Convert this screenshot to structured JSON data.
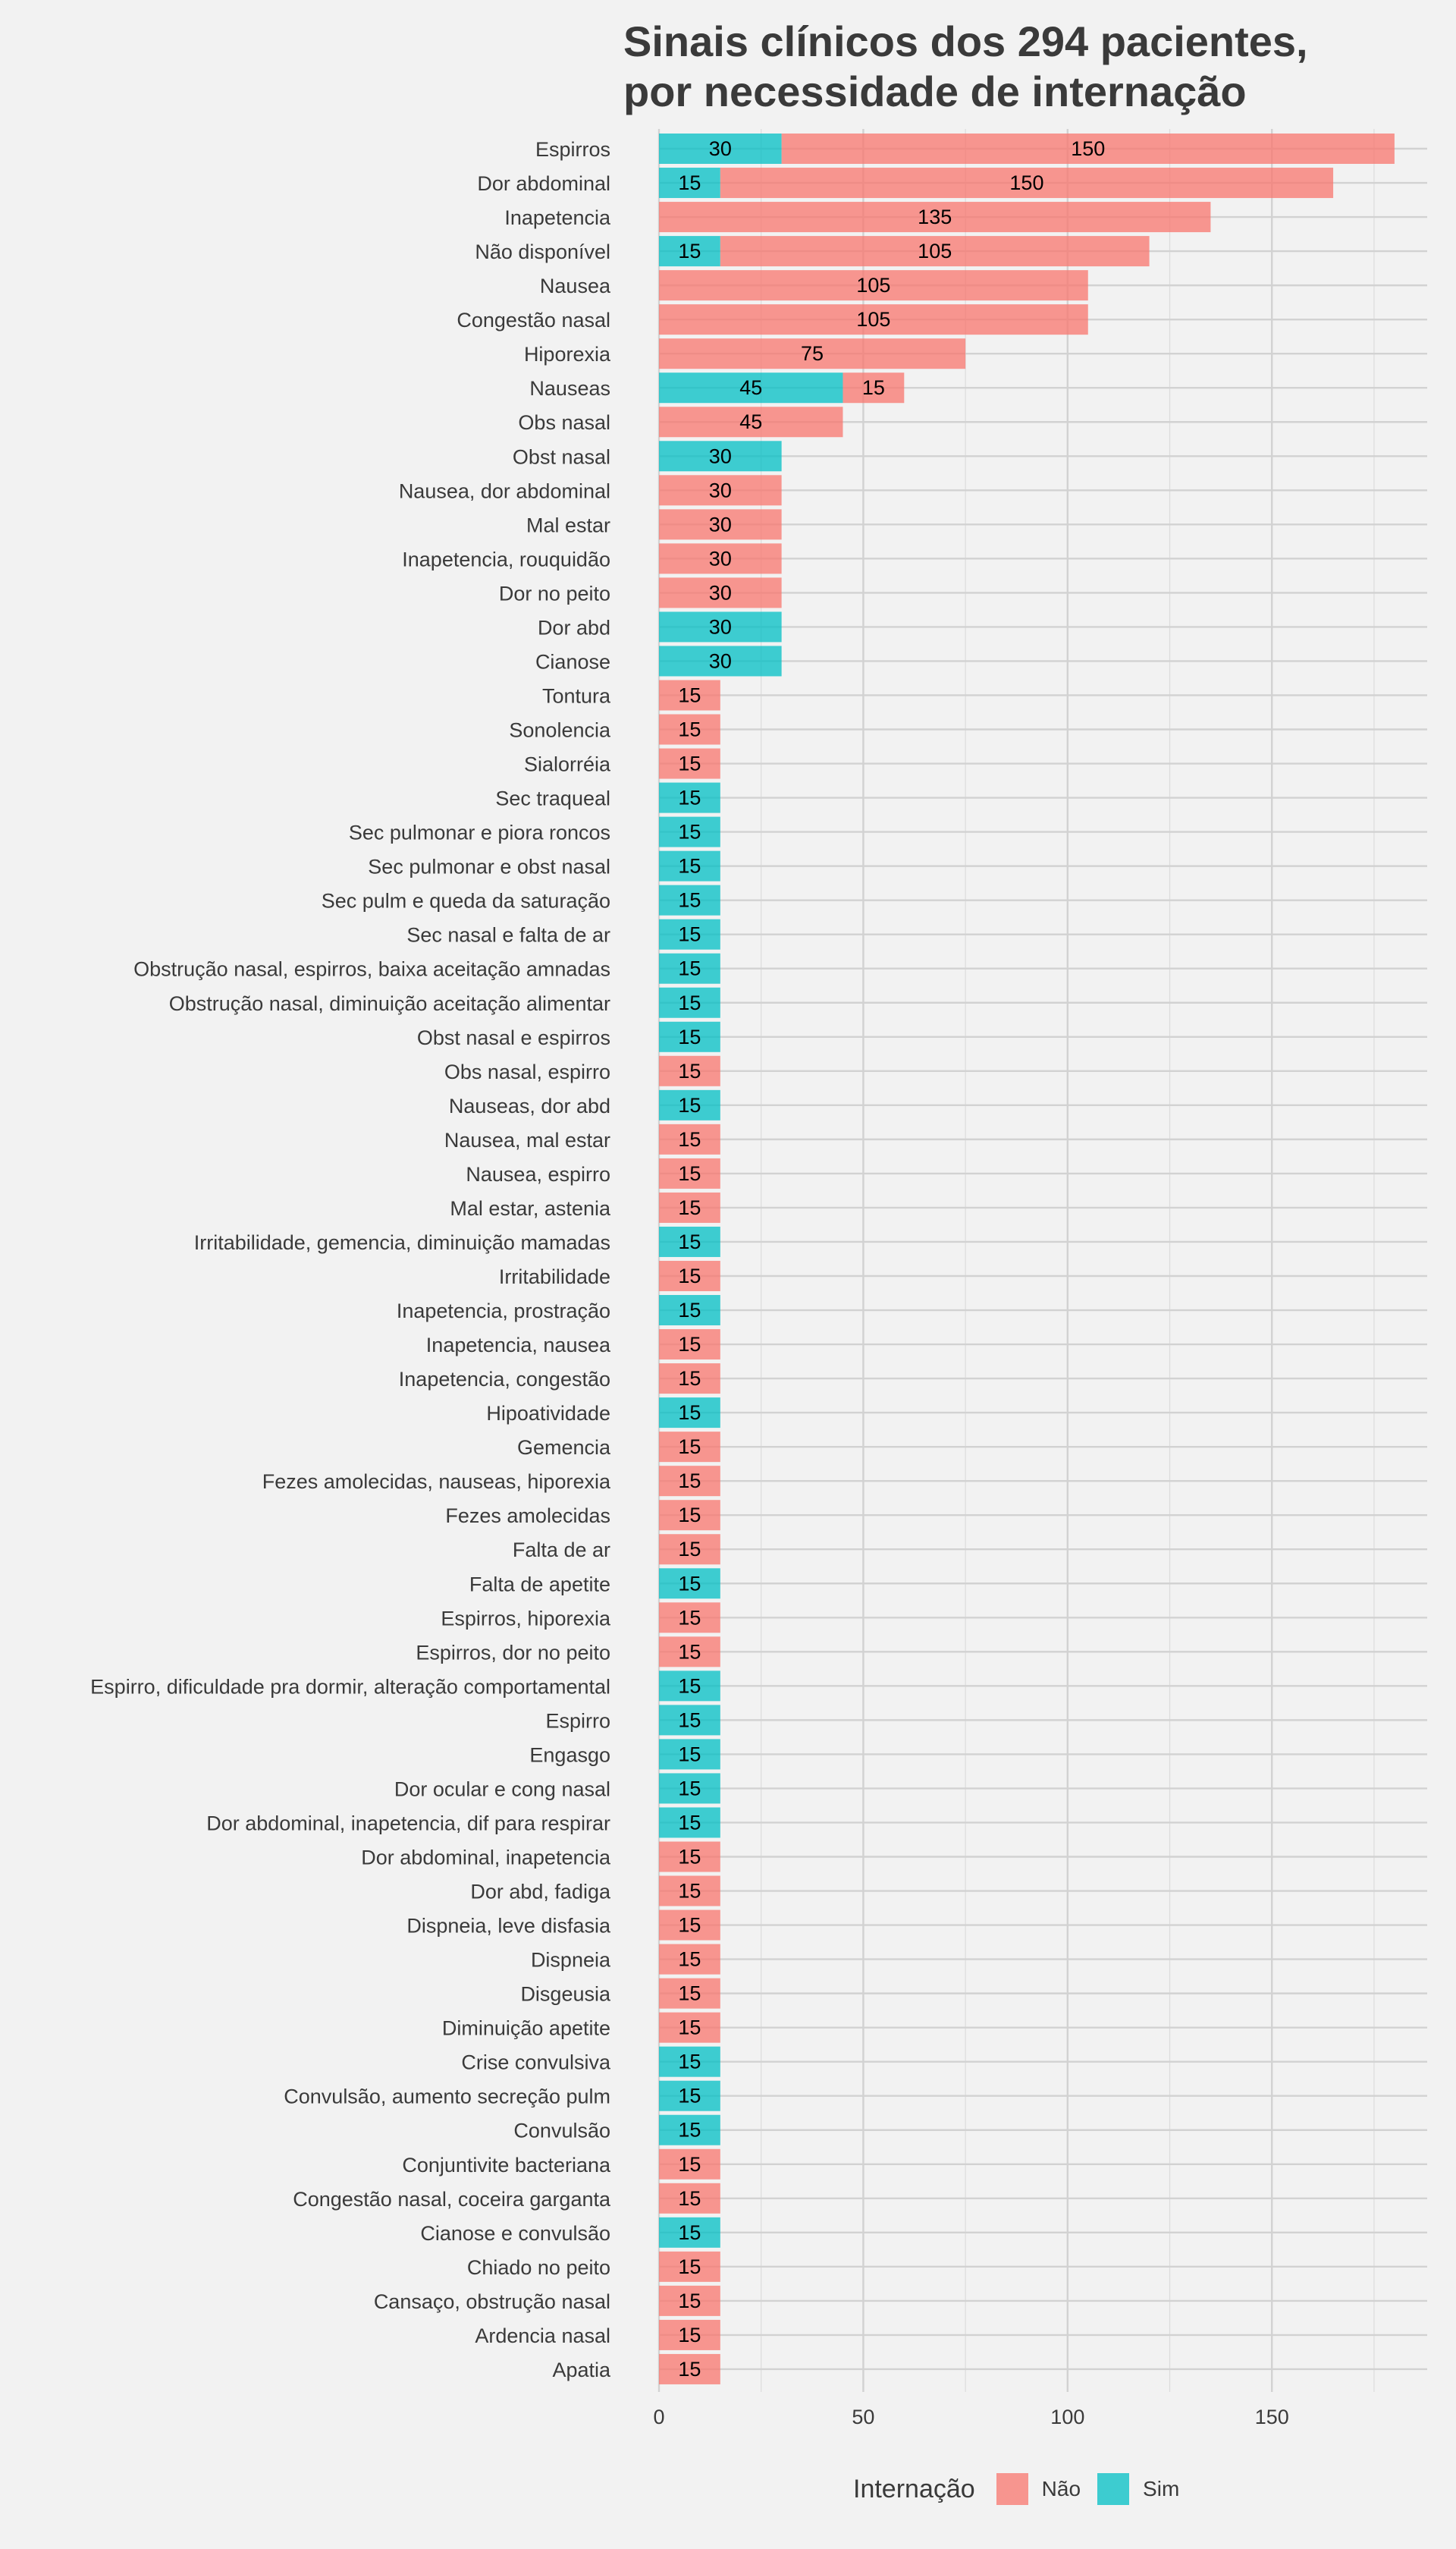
{
  "chart_data": {
    "type": "bar",
    "orientation": "horizontal",
    "stacked": true,
    "title_lines": [
      "Sinais clínicos dos 294 pacientes,",
      "por necessidade de internação"
    ],
    "xlabel": "",
    "ylabel": "",
    "xlim": [
      0,
      188
    ],
    "xticks": [
      0,
      50,
      100,
      150
    ],
    "grid": true,
    "legend": {
      "title": "Internação",
      "position": "bottom",
      "entries": [
        {
          "label": "Não",
          "color": "#f8766d"
        },
        {
          "label": "Sim",
          "color": "#00bfc4"
        }
      ]
    },
    "series_order": [
      "Sim",
      "Não"
    ],
    "categories": [
      "Espirros",
      "Dor abdominal",
      "Inapetencia",
      "Não disponível",
      "Nausea",
      "Congestão nasal",
      "Hiporexia",
      "Nauseas",
      "Obs nasal",
      "Obst nasal",
      "Nausea, dor abdominal",
      "Mal estar",
      "Inapetencia, rouquidão",
      "Dor no peito",
      "Dor abd",
      "Cianose",
      "Tontura",
      "Sonolencia",
      "Sialorréia",
      "Sec traqueal",
      "Sec pulmonar e piora roncos",
      "Sec pulmonar e obst nasal",
      "Sec pulm e queda da saturação",
      "Sec nasal e falta de ar",
      "Obstrução nasal, espirros, baixa aceitação amnadas",
      "Obstrução nasal, diminuição aceitação alimentar",
      "Obst nasal e espirros",
      "Obs nasal, espirro",
      "Nauseas, dor abd",
      "Nausea, mal estar",
      "Nausea, espirro",
      "Mal estar, astenia",
      "Irritabilidade, gemencia, diminuição mamadas",
      "Irritabilidade",
      "Inapetencia, prostração",
      "Inapetencia, nausea",
      "Inapetencia, congestão",
      "Hipoatividade",
      "Gemencia",
      "Fezes amolecidas, nauseas, hiporexia",
      "Fezes amolecidas",
      "Falta de ar",
      "Falta de apetite",
      "Espirros, hiporexia",
      "Espirros, dor no peito",
      "Espirro, dificuldade pra dormir, alteração comportamental",
      "Espirro",
      "Engasgo",
      "Dor ocular e cong nasal",
      "Dor abdominal, inapetencia, dif para respirar",
      "Dor abdominal, inapetencia",
      "Dor abd, fadiga",
      "Dispneia, leve disfasia",
      "Dispneia",
      "Disgeusia",
      "Diminuição apetite",
      "Crise convulsiva",
      "Convulsão, aumento secreção pulm",
      "Convulsão",
      "Conjuntivite bacteriana",
      "Congestão nasal, coceira garganta",
      "Cianose e convulsão",
      "Chiado no peito",
      "Cansaço, obstrução nasal",
      "Ardencia nasal",
      "Apatia"
    ],
    "series": [
      {
        "name": "Sim",
        "color": "#00bfc4",
        "values": [
          30,
          15,
          0,
          15,
          0,
          0,
          0,
          45,
          0,
          30,
          0,
          0,
          0,
          0,
          30,
          30,
          0,
          0,
          0,
          15,
          15,
          15,
          15,
          15,
          15,
          15,
          15,
          0,
          15,
          0,
          0,
          0,
          15,
          0,
          15,
          0,
          0,
          15,
          0,
          0,
          0,
          0,
          15,
          0,
          0,
          15,
          15,
          15,
          15,
          15,
          0,
          0,
          0,
          0,
          0,
          0,
          15,
          15,
          15,
          0,
          0,
          15,
          0,
          0,
          0,
          0
        ]
      },
      {
        "name": "Não",
        "color": "#f8766d",
        "values": [
          150,
          150,
          135,
          105,
          105,
          105,
          75,
          15,
          45,
          0,
          30,
          30,
          30,
          30,
          0,
          0,
          15,
          15,
          15,
          0,
          0,
          0,
          0,
          0,
          0,
          0,
          0,
          15,
          0,
          15,
          15,
          15,
          0,
          15,
          0,
          15,
          15,
          0,
          15,
          15,
          15,
          15,
          0,
          15,
          15,
          0,
          0,
          0,
          0,
          0,
          15,
          15,
          15,
          15,
          15,
          15,
          0,
          0,
          0,
          15,
          15,
          0,
          15,
          15,
          15,
          15
        ]
      }
    ]
  }
}
